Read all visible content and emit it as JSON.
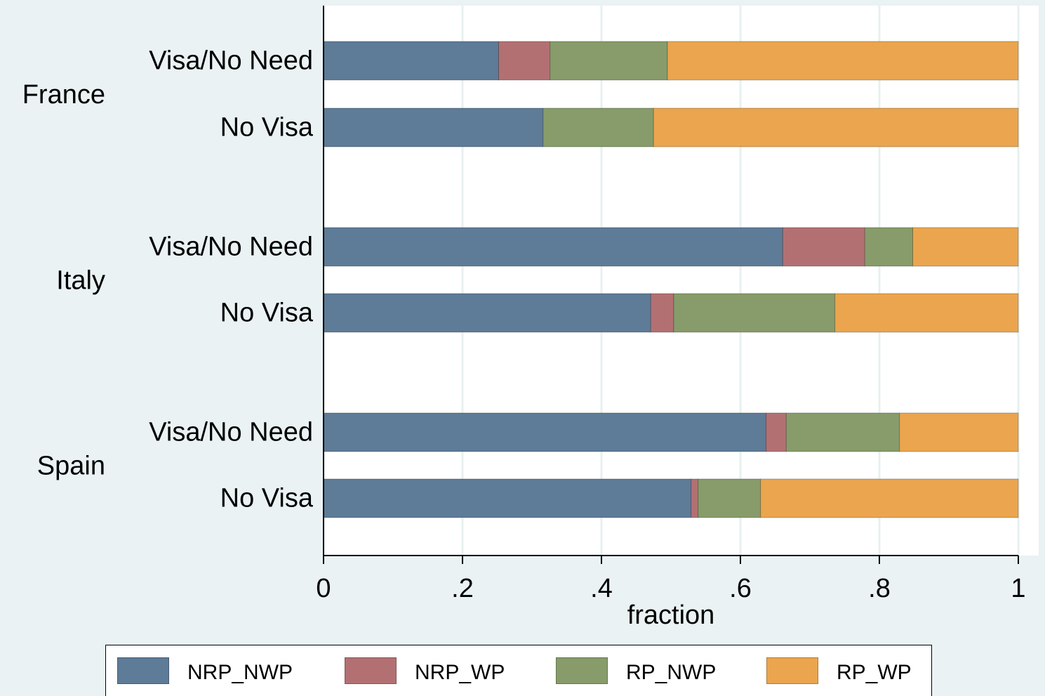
{
  "chart_data": {
    "type": "bar",
    "orientation": "horizontal",
    "stacked": true,
    "xlabel": "fraction",
    "xlim": [
      0,
      1
    ],
    "x_ticks": [
      0,
      0.2,
      0.4,
      0.6,
      0.8,
      1
    ],
    "x_tick_labels": [
      "0",
      ".2",
      ".4",
      ".6",
      ".8",
      "1"
    ],
    "grid": "vertical",
    "legend_position": "bottom",
    "groups": [
      {
        "label": "France",
        "bars": [
          {
            "label": "Visa/No Need",
            "values": [
              0.252,
              0.074,
              0.169,
              0.505
            ]
          },
          {
            "label": "No Visa",
            "values": [
              0.316,
              0.0,
              0.159,
              0.525
            ]
          }
        ]
      },
      {
        "label": "Italy",
        "bars": [
          {
            "label": "Visa/No Need",
            "values": [
              0.661,
              0.118,
              0.069,
              0.152
            ]
          },
          {
            "label": "No Visa",
            "values": [
              0.471,
              0.033,
              0.232,
              0.264
            ]
          }
        ]
      },
      {
        "label": "Spain",
        "bars": [
          {
            "label": "Visa/No Need",
            "values": [
              0.637,
              0.029,
              0.163,
              0.171
            ]
          },
          {
            "label": "No Visa",
            "values": [
              0.529,
              0.01,
              0.09,
              0.371
            ]
          }
        ]
      }
    ],
    "series": [
      {
        "name": "NRP_NWP",
        "color": "#5e7b97"
      },
      {
        "name": "NRP_WP",
        "color": "#b37072"
      },
      {
        "name": "RP_NWP",
        "color": "#879c6a"
      },
      {
        "name": "RP_WP",
        "color": "#eaa54e"
      }
    ]
  },
  "colors": {
    "background": "#eaf2f3",
    "plot_background": "#ffffff",
    "gridline": "#e8f0f1",
    "axis": "#000000"
  }
}
